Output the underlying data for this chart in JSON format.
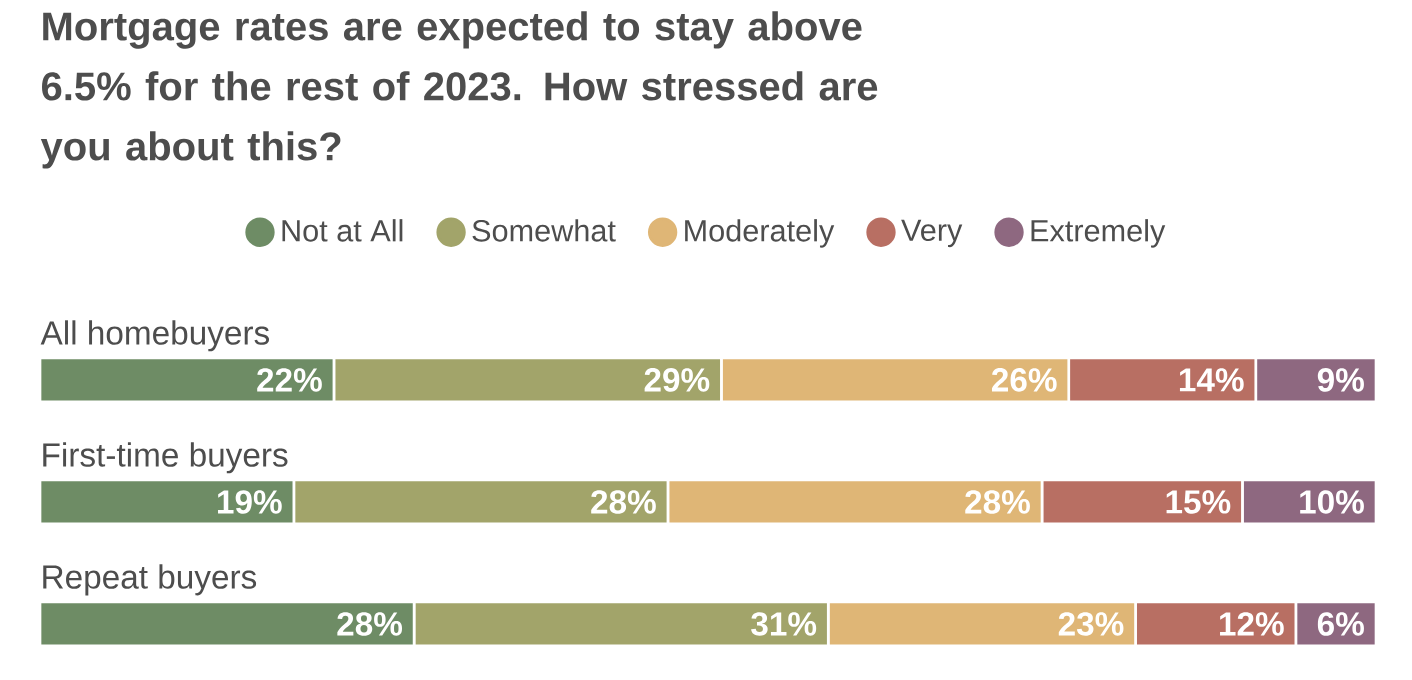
{
  "chart_data": {
    "type": "bar",
    "orientation": "horizontal",
    "stacked": true,
    "legend": "top",
    "title": "Mortgage rates are expected to stay above 6.5% for the rest of 2023. How stressed are you about this?",
    "categories": [
      "All homebuyers",
      "First-time buyers",
      "Repeat buyers"
    ],
    "series": [
      {
        "name": "Not at All",
        "color": "#6e8c65",
        "values": [
          22,
          19,
          28
        ],
        "value_labels": [
          "22%",
          "19%",
          "28%"
        ]
      },
      {
        "name": "Somewhat",
        "color": "#a2a46a",
        "values": [
          29,
          28,
          31
        ],
        "value_labels": [
          "29%",
          "28%",
          "31%"
        ]
      },
      {
        "name": "Moderately",
        "color": "#dfb676",
        "values": [
          26,
          28,
          23
        ],
        "value_labels": [
          "26%",
          "28%",
          "23%"
        ]
      },
      {
        "name": "Very",
        "color": "#b86f63",
        "values": [
          14,
          15,
          12
        ],
        "value_labels": [
          "14%",
          "15%",
          "12%"
        ]
      },
      {
        "name": "Extremely",
        "color": "#8e6880",
        "values": [
          9,
          10,
          6
        ],
        "value_labels": [
          "9%",
          "10%",
          "6%"
        ]
      }
    ]
  }
}
